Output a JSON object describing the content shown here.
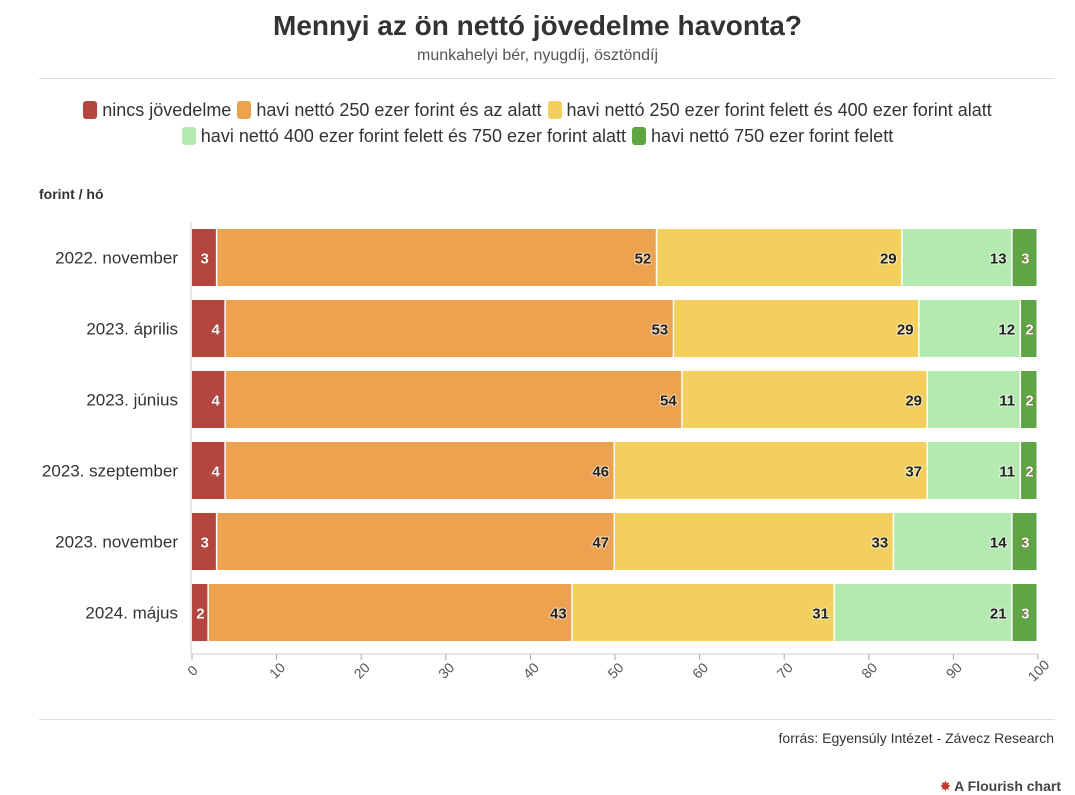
{
  "header": {
    "title": "Mennyi az ön nettó jövedelme havonta?",
    "subtitle": "munkahelyi bér, nyugdíj, ösztöndíj"
  },
  "unit_label": "forint / hó",
  "footer": {
    "source": "forrás: Egyensúly Intézet - Závecz Research",
    "brand": "A Flourish chart"
  },
  "chart_data": {
    "type": "bar",
    "orientation": "horizontal",
    "stacked": true,
    "categories": [
      "2022. november",
      "2023. április",
      "2023. június",
      "2023. szeptember",
      "2023. november",
      "2024. május"
    ],
    "series": [
      {
        "name": "nincs jövedelme",
        "color": "#b5463f",
        "values": [
          3,
          4,
          4,
          4,
          3,
          2
        ]
      },
      {
        "name": "havi nettó 250 ezer forint és az alatt",
        "color": "#eca24f",
        "values": [
          52,
          53,
          54,
          46,
          47,
          43
        ]
      },
      {
        "name": "havi nettó 250 ezer forint felett és 400 ezer forint alatt",
        "color": "#f3d05e",
        "values": [
          29,
          29,
          29,
          37,
          33,
          31
        ]
      },
      {
        "name": "havi nettó 400 ezer forint felett és 750 ezer forint alatt",
        "color": "#b4eab0",
        "values": [
          13,
          12,
          11,
          11,
          14,
          21
        ]
      },
      {
        "name": "havi nettó 750 ezer forint felett",
        "color": "#5ea543",
        "values": [
          3,
          2,
          2,
          2,
          3,
          3
        ]
      }
    ],
    "xlim": [
      0,
      100
    ],
    "xticks": [
      0,
      10,
      20,
      30,
      40,
      50,
      60,
      70,
      80,
      90,
      100
    ],
    "legend_position": "top",
    "grid": false
  }
}
